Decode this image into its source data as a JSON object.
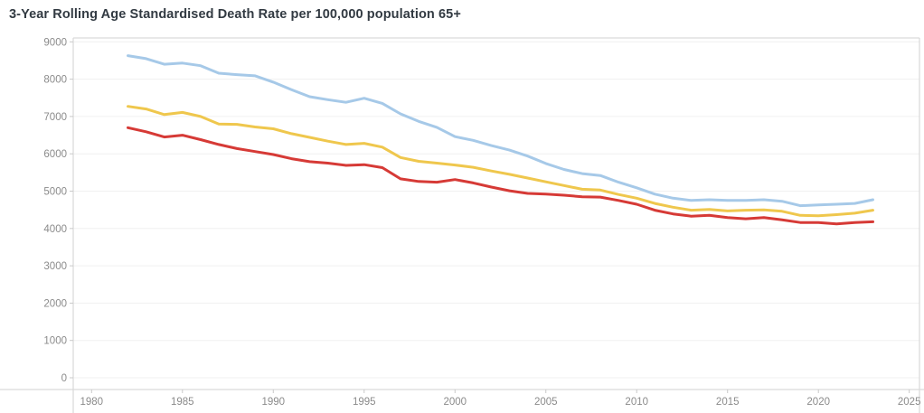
{
  "chart_data": {
    "type": "line",
    "title": "3-Year Rolling Age Standardised Death Rate per 100,000 population 65+",
    "xlabel": "",
    "ylabel": "",
    "xlim": [
      1980,
      2025
    ],
    "ylim": [
      0,
      9000
    ],
    "x_ticks": [
      1980,
      1985,
      1990,
      1995,
      2000,
      2005,
      2010,
      2015,
      2020,
      2025
    ],
    "y_ticks": [
      0,
      1000,
      2000,
      3000,
      4000,
      5000,
      6000,
      7000,
      8000,
      9000
    ],
    "grid": "horizontal-only",
    "legend": "none",
    "x": [
      1982,
      1983,
      1984,
      1985,
      1986,
      1987,
      1988,
      1989,
      1990,
      1991,
      1992,
      1993,
      1994,
      1995,
      1996,
      1997,
      1998,
      1999,
      2000,
      2001,
      2002,
      2003,
      2004,
      2005,
      2006,
      2007,
      2008,
      2009,
      2010,
      2011,
      2012,
      2013,
      2014,
      2015,
      2016,
      2017,
      2018,
      2019,
      2020,
      2021,
      2022,
      2023
    ],
    "series": [
      {
        "name": "blue",
        "color": "#A6C9E8",
        "values": [
          8630,
          8550,
          8400,
          8430,
          8360,
          8160,
          8120,
          8090,
          7920,
          7720,
          7530,
          7450,
          7380,
          7490,
          7350,
          7070,
          6870,
          6710,
          6460,
          6360,
          6220,
          6100,
          5940,
          5740,
          5580,
          5470,
          5420,
          5240,
          5090,
          4920,
          4810,
          4750,
          4770,
          4750,
          4750,
          4770,
          4730,
          4610,
          4630,
          4650,
          4670,
          4770
        ]
      },
      {
        "name": "yellow",
        "color": "#EFC74D",
        "values": [
          7270,
          7200,
          7050,
          7110,
          7000,
          6800,
          6790,
          6720,
          6670,
          6540,
          6440,
          6340,
          6250,
          6280,
          6180,
          5900,
          5800,
          5750,
          5700,
          5640,
          5540,
          5450,
          5350,
          5250,
          5150,
          5050,
          5030,
          4910,
          4810,
          4670,
          4570,
          4490,
          4510,
          4470,
          4490,
          4500,
          4460,
          4350,
          4340,
          4370,
          4410,
          4490
        ]
      },
      {
        "name": "red",
        "color": "#D63A36",
        "values": [
          6700,
          6590,
          6450,
          6500,
          6380,
          6250,
          6140,
          6060,
          5980,
          5870,
          5790,
          5750,
          5690,
          5710,
          5630,
          5330,
          5260,
          5240,
          5310,
          5220,
          5110,
          5010,
          4940,
          4920,
          4890,
          4850,
          4840,
          4750,
          4650,
          4490,
          4390,
          4330,
          4350,
          4290,
          4260,
          4290,
          4230,
          4160,
          4160,
          4120,
          4160,
          4180
        ]
      }
    ]
  },
  "colors": {
    "background": "#ffffff",
    "gridline": "#f0f0f0",
    "axis_line": "#d9d9d9",
    "tick_mark": "#c9c9c9",
    "tick_label": "#8b8b8b",
    "title": "#323a42"
  }
}
